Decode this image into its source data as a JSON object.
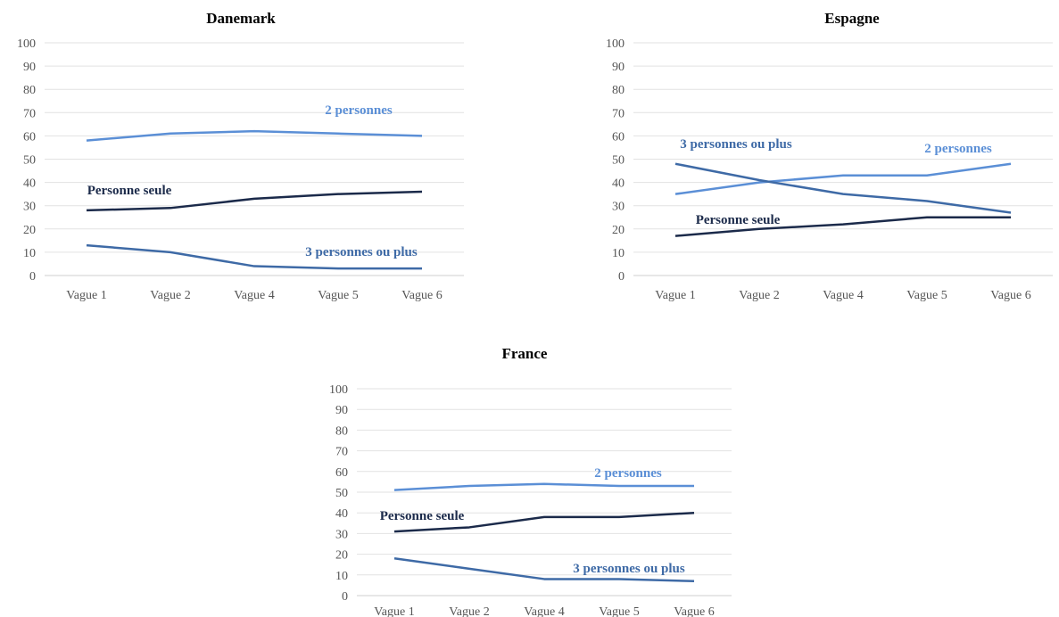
{
  "colors": {
    "two_persons": "#5b8fd6",
    "single_person": "#1b2a4a",
    "three_plus": "#3e6aa6"
  },
  "chart_data": [
    {
      "type": "line",
      "title": "Danemark",
      "categories": [
        "Vague 1",
        "Vague 2",
        "Vague 4",
        "Vague 5",
        "Vague 6"
      ],
      "ylim": [
        0,
        100
      ],
      "yticks": [
        0,
        10,
        20,
        30,
        40,
        50,
        60,
        70,
        80,
        90,
        100
      ],
      "grid": true,
      "series": [
        {
          "name": "2 personnes",
          "key": "two_persons",
          "values": [
            58,
            61,
            62,
            61,
            60
          ]
        },
        {
          "name": "Personne seule",
          "key": "single_person",
          "values": [
            28,
            29,
            33,
            35,
            36
          ]
        },
        {
          "name": "3 personnes ou plus",
          "key": "three_plus",
          "values": [
            13,
            10,
            4,
            3,
            3
          ]
        }
      ]
    },
    {
      "type": "line",
      "title": "Espagne",
      "categories": [
        "Vague 1",
        "Vague 2",
        "Vague 4",
        "Vague 5",
        "Vague 6"
      ],
      "ylim": [
        0,
        100
      ],
      "yticks": [
        0,
        10,
        20,
        30,
        40,
        50,
        60,
        70,
        80,
        90,
        100
      ],
      "grid": true,
      "series": [
        {
          "name": "2 personnes",
          "key": "two_persons",
          "values": [
            35,
            40,
            43,
            43,
            48
          ]
        },
        {
          "name": "3 personnes ou plus",
          "key": "three_plus",
          "values": [
            48,
            41,
            35,
            32,
            27
          ]
        },
        {
          "name": "Personne seule",
          "key": "single_person",
          "values": [
            17,
            20,
            22,
            25,
            25
          ]
        }
      ]
    },
    {
      "type": "line",
      "title": "France",
      "categories": [
        "Vague 1",
        "Vague 2",
        "Vague 4",
        "Vague 5",
        "Vague 6"
      ],
      "ylim": [
        0,
        100
      ],
      "yticks": [
        0,
        10,
        20,
        30,
        40,
        50,
        60,
        70,
        80,
        90,
        100
      ],
      "grid": true,
      "series": [
        {
          "name": "2 personnes",
          "key": "two_persons",
          "values": [
            51,
            53,
            54,
            53,
            53
          ]
        },
        {
          "name": "Personne seule",
          "key": "single_person",
          "values": [
            31,
            33,
            38,
            38,
            40
          ]
        },
        {
          "name": "3 personnes ou plus",
          "key": "three_plus",
          "values": [
            18,
            13,
            8,
            8,
            7
          ]
        }
      ]
    }
  ]
}
